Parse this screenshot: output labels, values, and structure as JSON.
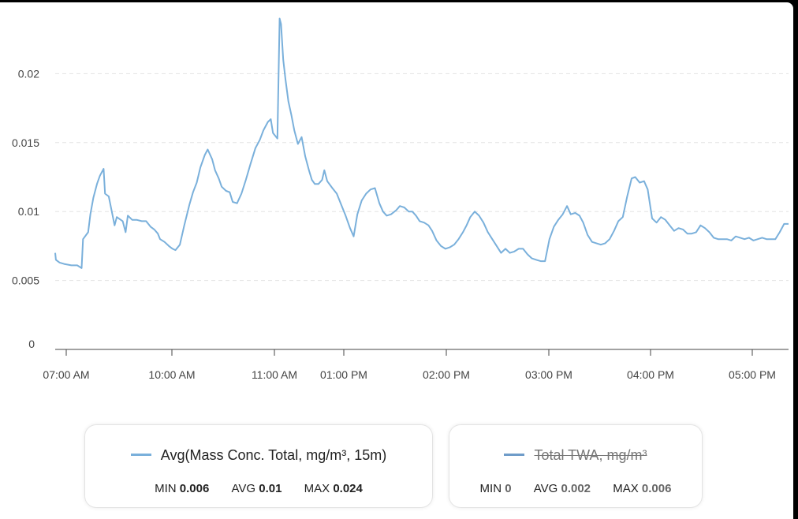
{
  "chart_data": {
    "type": "line",
    "ylim": [
      0,
      0.025
    ],
    "yticks": [
      "0",
      "0.005",
      "0.01",
      "0.015",
      "0.02"
    ],
    "xticks": [
      "07:00 AM",
      "10:00 AM",
      "11:00 AM",
      "01:00 PM",
      "02:00 PM",
      "03:00 PM",
      "04:00 PM",
      "05:00 PM"
    ],
    "grid": "horizontal dashed",
    "series": [
      {
        "name": "Avg(Mass Conc. Total, mg/m³, 15m)",
        "color": "#7ab0db",
        "points": [
          [
            0.0,
            0.007
          ],
          [
            0.001,
            0.0065
          ],
          [
            0.006,
            0.0063
          ],
          [
            0.012,
            0.0062
          ],
          [
            0.022,
            0.0061
          ],
          [
            0.03,
            0.0061
          ],
          [
            0.036,
            0.0059
          ],
          [
            0.038,
            0.008
          ],
          [
            0.045,
            0.0085
          ],
          [
            0.048,
            0.0098
          ],
          [
            0.052,
            0.011
          ],
          [
            0.057,
            0.012
          ],
          [
            0.061,
            0.0126
          ],
          [
            0.066,
            0.0131
          ],
          [
            0.068,
            0.0113
          ],
          [
            0.073,
            0.0111
          ],
          [
            0.078,
            0.0098
          ],
          [
            0.081,
            0.009
          ],
          [
            0.084,
            0.0096
          ],
          [
            0.092,
            0.0093
          ],
          [
            0.096,
            0.0085
          ],
          [
            0.099,
            0.0097
          ],
          [
            0.105,
            0.0094
          ],
          [
            0.111,
            0.0094
          ],
          [
            0.118,
            0.0093
          ],
          [
            0.124,
            0.0093
          ],
          [
            0.13,
            0.0089
          ],
          [
            0.135,
            0.0087
          ],
          [
            0.14,
            0.0084
          ],
          [
            0.143,
            0.008
          ],
          [
            0.149,
            0.0078
          ],
          [
            0.155,
            0.0075
          ],
          [
            0.16,
            0.0073
          ],
          [
            0.164,
            0.0072
          ],
          [
            0.17,
            0.0076
          ],
          [
            0.176,
            0.009
          ],
          [
            0.183,
            0.0105
          ],
          [
            0.188,
            0.0114
          ],
          [
            0.193,
            0.0121
          ],
          [
            0.198,
            0.0132
          ],
          [
            0.204,
            0.0141
          ],
          [
            0.208,
            0.0145
          ],
          [
            0.214,
            0.0138
          ],
          [
            0.218,
            0.013
          ],
          [
            0.223,
            0.0124
          ],
          [
            0.227,
            0.0118
          ],
          [
            0.233,
            0.0115
          ],
          [
            0.238,
            0.0114
          ],
          [
            0.242,
            0.0107
          ],
          [
            0.248,
            0.0106
          ],
          [
            0.254,
            0.0113
          ],
          [
            0.26,
            0.0123
          ],
          [
            0.266,
            0.0134
          ],
          [
            0.273,
            0.0146
          ],
          [
            0.279,
            0.0152
          ],
          [
            0.284,
            0.0159
          ],
          [
            0.29,
            0.0165
          ],
          [
            0.294,
            0.0167
          ],
          [
            0.297,
            0.0157
          ],
          [
            0.303,
            0.0153
          ],
          [
            0.306,
            0.024
          ],
          [
            0.308,
            0.0236
          ],
          [
            0.311,
            0.021
          ],
          [
            0.314,
            0.0196
          ],
          [
            0.318,
            0.018
          ],
          [
            0.322,
            0.017
          ],
          [
            0.326,
            0.0159
          ],
          [
            0.331,
            0.0149
          ],
          [
            0.336,
            0.0154
          ],
          [
            0.341,
            0.014
          ],
          [
            0.346,
            0.013
          ],
          [
            0.35,
            0.0123
          ],
          [
            0.354,
            0.012
          ],
          [
            0.359,
            0.012
          ],
          [
            0.364,
            0.0123
          ],
          [
            0.367,
            0.013
          ],
          [
            0.371,
            0.0122
          ],
          [
            0.378,
            0.0117
          ],
          [
            0.384,
            0.0113
          ],
          [
            0.39,
            0.0105
          ],
          [
            0.396,
            0.0097
          ],
          [
            0.402,
            0.0088
          ],
          [
            0.407,
            0.0082
          ],
          [
            0.412,
            0.0098
          ],
          [
            0.418,
            0.0108
          ],
          [
            0.424,
            0.0113
          ],
          [
            0.43,
            0.0116
          ],
          [
            0.436,
            0.0117
          ],
          [
            0.442,
            0.0106
          ],
          [
            0.447,
            0.01
          ],
          [
            0.452,
            0.0097
          ],
          [
            0.458,
            0.0098
          ],
          [
            0.465,
            0.0101
          ],
          [
            0.47,
            0.0104
          ],
          [
            0.476,
            0.0103
          ],
          [
            0.482,
            0.01
          ],
          [
            0.487,
            0.01
          ],
          [
            0.492,
            0.0097
          ],
          [
            0.497,
            0.0093
          ],
          [
            0.503,
            0.0092
          ],
          [
            0.509,
            0.009
          ],
          [
            0.514,
            0.0086
          ],
          [
            0.52,
            0.0079
          ],
          [
            0.526,
            0.0075
          ],
          [
            0.532,
            0.0073
          ],
          [
            0.538,
            0.0074
          ],
          [
            0.544,
            0.0076
          ],
          [
            0.55,
            0.008
          ],
          [
            0.556,
            0.0085
          ],
          [
            0.561,
            0.009
          ],
          [
            0.566,
            0.0096
          ],
          [
            0.572,
            0.01
          ],
          [
            0.578,
            0.0097
          ],
          [
            0.584,
            0.0092
          ],
          [
            0.59,
            0.0085
          ],
          [
            0.596,
            0.008
          ],
          [
            0.602,
            0.0075
          ],
          [
            0.608,
            0.007
          ],
          [
            0.614,
            0.0073
          ],
          [
            0.62,
            0.007
          ],
          [
            0.626,
            0.0071
          ],
          [
            0.632,
            0.0073
          ],
          [
            0.638,
            0.0073
          ],
          [
            0.644,
            0.0069
          ],
          [
            0.65,
            0.0066
          ],
          [
            0.656,
            0.0065
          ],
          [
            0.662,
            0.0064
          ],
          [
            0.668,
            0.0064
          ],
          [
            0.674,
            0.008
          ],
          [
            0.68,
            0.0089
          ],
          [
            0.686,
            0.0094
          ],
          [
            0.692,
            0.0098
          ],
          [
            0.698,
            0.0104
          ],
          [
            0.703,
            0.0098
          ],
          [
            0.709,
            0.0099
          ],
          [
            0.715,
            0.0097
          ],
          [
            0.72,
            0.0092
          ],
          [
            0.726,
            0.0083
          ],
          [
            0.732,
            0.0078
          ],
          [
            0.738,
            0.0077
          ],
          [
            0.744,
            0.0076
          ],
          [
            0.75,
            0.0077
          ],
          [
            0.756,
            0.008
          ],
          [
            0.762,
            0.0086
          ],
          [
            0.768,
            0.0093
          ],
          [
            0.774,
            0.0096
          ],
          [
            0.78,
            0.0111
          ],
          [
            0.786,
            0.0124
          ],
          [
            0.791,
            0.0125
          ],
          [
            0.797,
            0.0121
          ],
          [
            0.803,
            0.0122
          ],
          [
            0.808,
            0.0116
          ],
          [
            0.814,
            0.0095
          ],
          [
            0.82,
            0.0092
          ],
          [
            0.826,
            0.0096
          ],
          [
            0.832,
            0.0094
          ],
          [
            0.838,
            0.009
          ],
          [
            0.844,
            0.0086
          ],
          [
            0.85,
            0.0088
          ],
          [
            0.856,
            0.0087
          ],
          [
            0.862,
            0.0084
          ],
          [
            0.868,
            0.0084
          ],
          [
            0.874,
            0.0085
          ],
          [
            0.88,
            0.009
          ],
          [
            0.886,
            0.0088
          ],
          [
            0.892,
            0.0085
          ],
          [
            0.898,
            0.0081
          ],
          [
            0.904,
            0.008
          ],
          [
            0.91,
            0.008
          ],
          [
            0.916,
            0.008
          ],
          [
            0.922,
            0.0079
          ],
          [
            0.928,
            0.0082
          ],
          [
            0.934,
            0.0081
          ],
          [
            0.94,
            0.008
          ],
          [
            0.946,
            0.0081
          ],
          [
            0.952,
            0.0079
          ],
          [
            0.958,
            0.008
          ],
          [
            0.964,
            0.0081
          ],
          [
            0.97,
            0.008
          ],
          [
            0.976,
            0.008
          ],
          [
            0.982,
            0.008
          ],
          [
            0.988,
            0.0085
          ],
          [
            0.994,
            0.0091
          ],
          [
            1.0,
            0.0091
          ]
        ]
      }
    ]
  },
  "legend": [
    {
      "label": "Avg(Mass Conc. Total, mg/m³, 15m)",
      "color": "#7ab0db",
      "enabled": true,
      "min_label": "MIN",
      "min": "0.006",
      "avg_label": "AVG",
      "avg": "0.01",
      "max_label": "MAX",
      "max": "0.024"
    },
    {
      "label": "Total TWA, mg/m³",
      "color": "#6f9cc9",
      "enabled": false,
      "min_label": "MIN",
      "min": "0",
      "avg_label": "AVG",
      "avg": "0.002",
      "max_label": "MAX",
      "max": "0.006"
    }
  ]
}
